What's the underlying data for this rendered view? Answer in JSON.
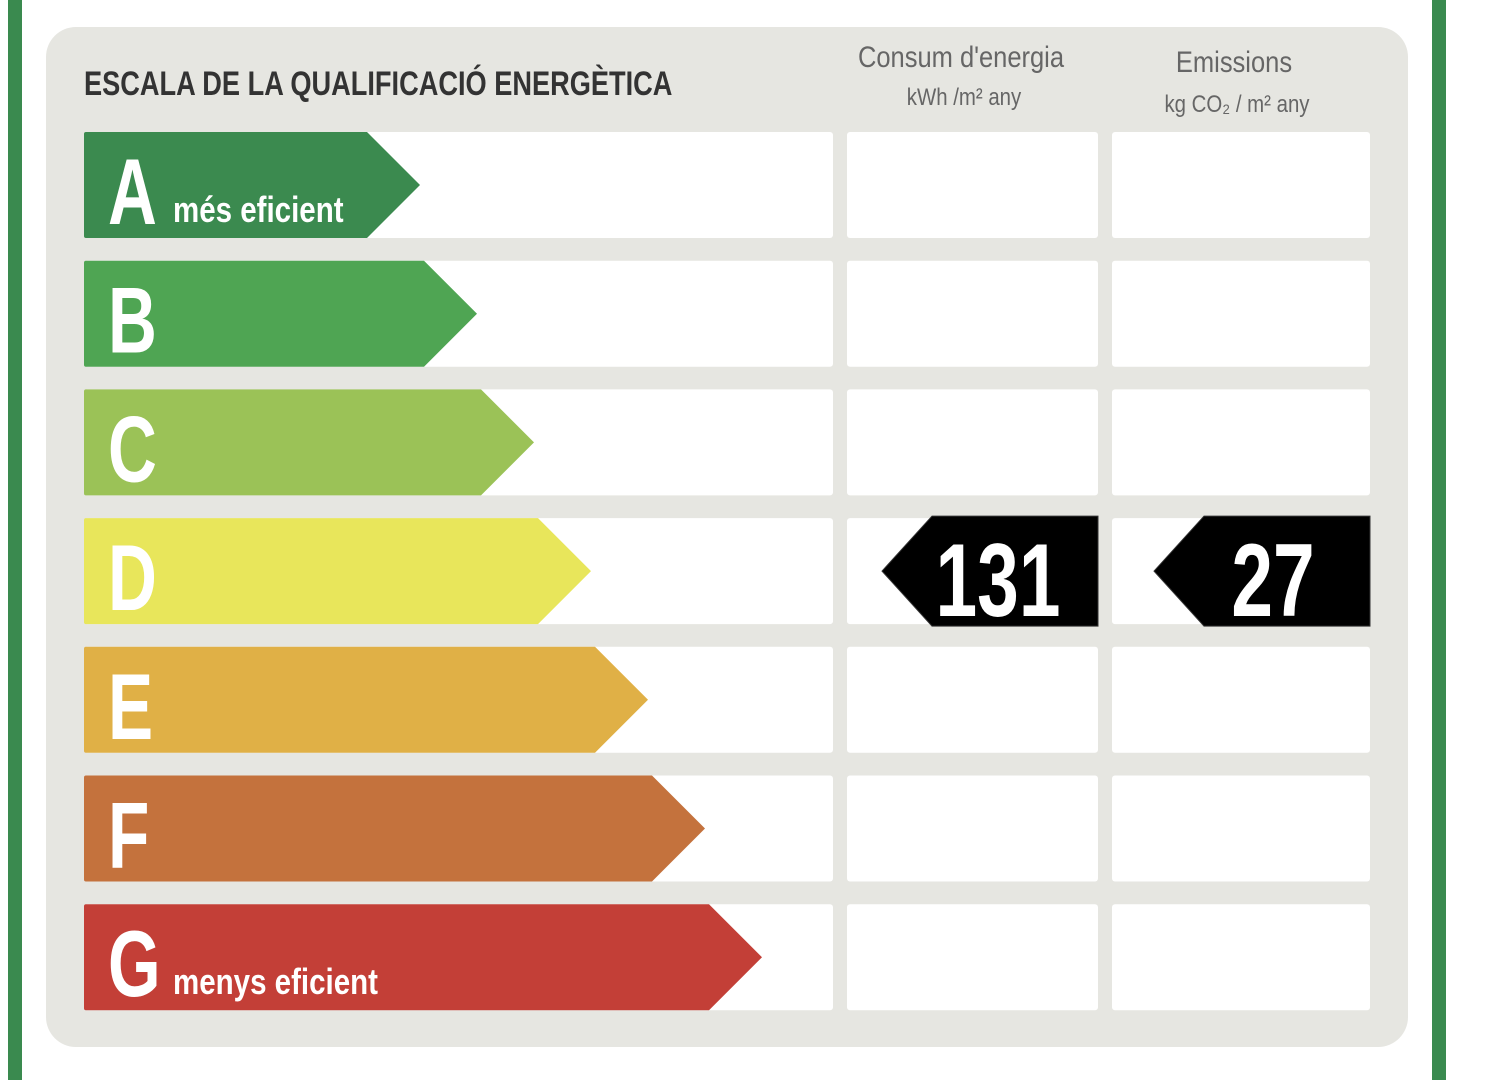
{
  "header": {
    "title": "ESCALA DE LA QUALIFICACIÓ ENERGÈTICA",
    "columns": [
      {
        "name": "Consum d'energia",
        "unit": "kWh /m² any"
      },
      {
        "name": "Emissions",
        "unit": "kg CO₂ / m² any"
      }
    ]
  },
  "rows": [
    {
      "letter": "A",
      "note": "més eficient",
      "color": "#3b8a4f"
    },
    {
      "letter": "B",
      "color": "#4fa553"
    },
    {
      "letter": "C",
      "color": "#9bc257"
    },
    {
      "letter": "D",
      "color": "#e8e65b",
      "consumption": 131,
      "emissions": 27
    },
    {
      "letter": "E",
      "color": "#e0b046"
    },
    {
      "letter": "F",
      "color": "#c4723d"
    },
    {
      "letter": "G",
      "note": "menys eficient",
      "color": "#c33f37"
    }
  ]
}
